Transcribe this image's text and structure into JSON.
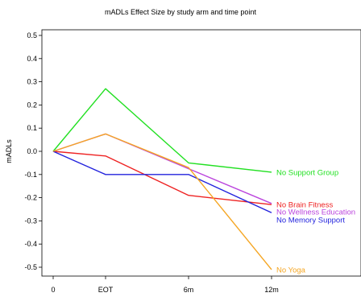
{
  "chart_data": {
    "type": "line",
    "title": "mADLs Effect Size by study arm and time point",
    "xlabel": "",
    "ylabel": "mADLs",
    "categories": [
      "0",
      "EOT",
      "6m",
      "12m"
    ],
    "ylim": [
      -0.55,
      0.55
    ],
    "yticks": [
      -0.5,
      -0.4,
      -0.3,
      -0.2,
      -0.1,
      0.0,
      0.1,
      0.2,
      0.3,
      0.4,
      0.5
    ],
    "ytick_labels": [
      "-0.5",
      "-0.4",
      "-0.3",
      "-0.2",
      "-0.1",
      "0.0",
      "0.1",
      "0.2",
      "0.3",
      "0.4",
      "0.5"
    ],
    "grid": false,
    "legend": "direct labels at line ends",
    "series": [
      {
        "name": "No Support Group",
        "color": "#22e022",
        "values": [
          0.0,
          0.27,
          -0.05,
          -0.09
        ]
      },
      {
        "name": "No Brain Fitness",
        "color": "#ee2222",
        "values": [
          0.0,
          -0.02,
          -0.19,
          -0.23
        ]
      },
      {
        "name": "No Wellness Education",
        "color": "#bb44dd",
        "values": [
          0.0,
          0.075,
          -0.075,
          -0.225
        ]
      },
      {
        "name": "No Memory Support",
        "color": "#2222dd",
        "values": [
          0.0,
          -0.1,
          -0.1,
          -0.265
        ]
      },
      {
        "name": "No Yoga",
        "color": "#f5a623",
        "values": [
          0.0,
          0.075,
          -0.07,
          -0.51
        ]
      }
    ]
  }
}
